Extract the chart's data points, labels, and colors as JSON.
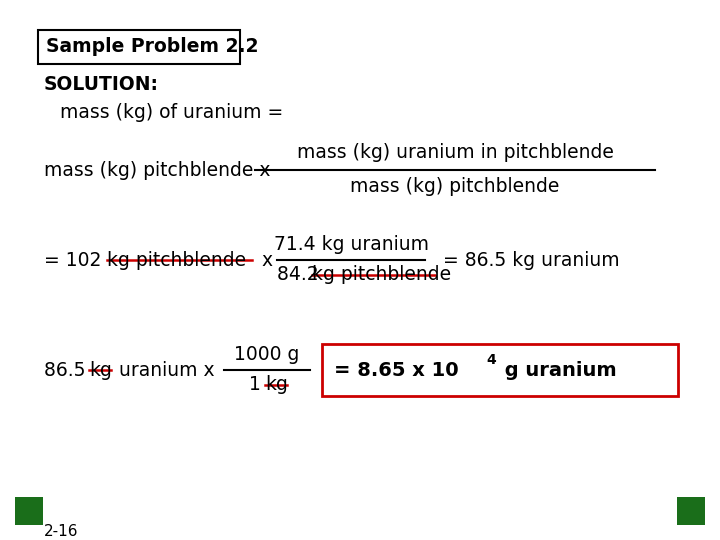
{
  "bg_color": "#ffffff",
  "title": "Sample Problem 2.2",
  "solution_label": "SOLUTION:",
  "line1": "mass (kg) of uranium =",
  "line2_left": "mass (kg) pitchblende x",
  "frac1_num": "mass (kg) uranium in pitchblende",
  "frac1_den": "mass (kg) pitchblende",
  "frac2_num": "71.4 kg uranium",
  "frac2_den_plain": "84.2 ",
  "frac2_den_strike": "kg pitchblende",
  "line3_eq102": "= 102 ",
  "line3_strike1": "kg pitchblende",
  "line3_x": " x ",
  "line3_result": "= 86.5 kg uranium",
  "line4_prefix": "86.5 ",
  "line4_strike": "kg",
  "line4_mid": " uranium x",
  "frac3_num": "1000 g",
  "frac3_den_plain": "1 ",
  "frac3_den_strike": "kg",
  "result_main": "= 8.65 x 10",
  "result_exp": "4",
  "result_end": " g uranium",
  "page": "2-16",
  "green_color": "#1a6e1a",
  "red_color": "#cc0000",
  "black": "#000000"
}
